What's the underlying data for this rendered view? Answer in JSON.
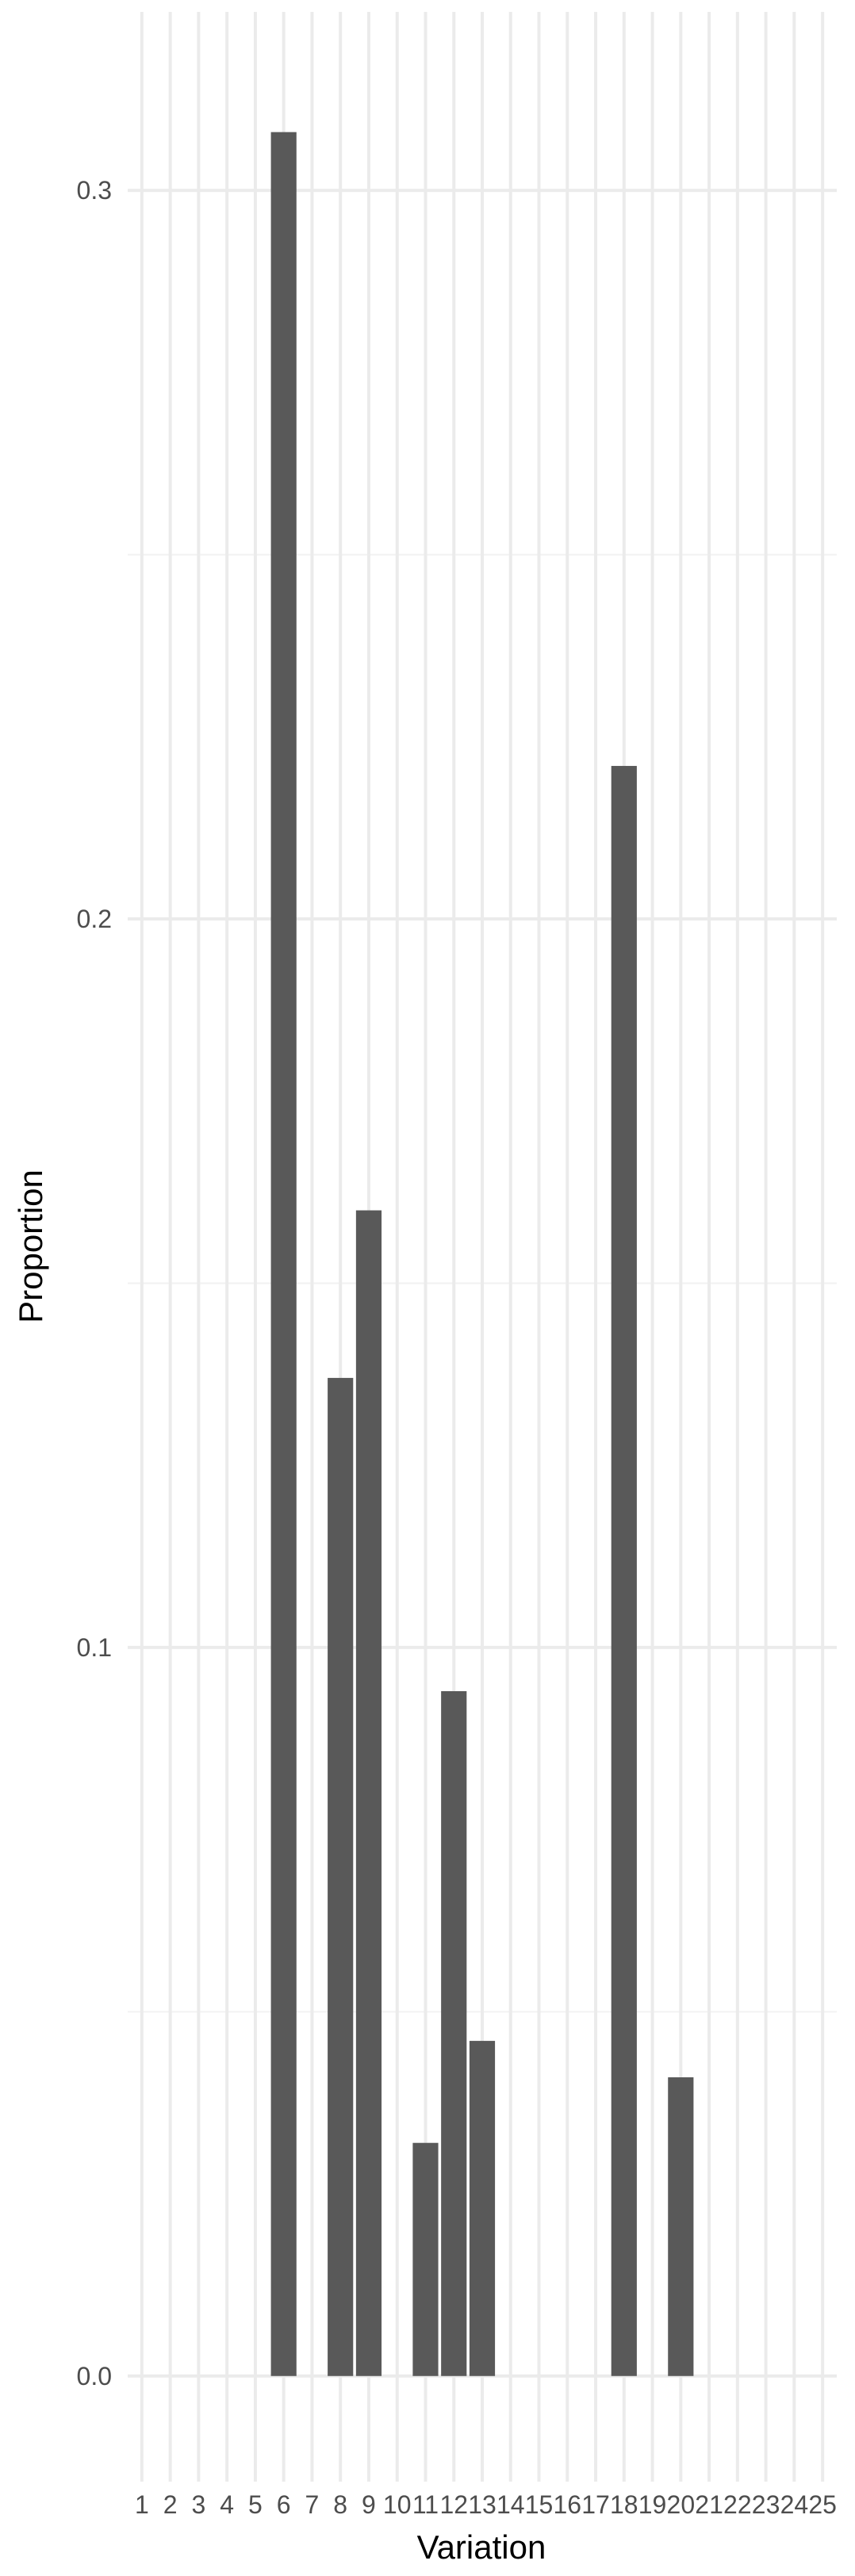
{
  "chart_data": {
    "type": "bar",
    "title": "",
    "xlabel": "Variation",
    "ylabel": "Proportion",
    "categories": [
      "1",
      "2",
      "3",
      "4",
      "5",
      "6",
      "7",
      "8",
      "9",
      "10",
      "11",
      "12",
      "13",
      "14",
      "15",
      "16",
      "17",
      "18",
      "19",
      "20",
      "21",
      "22",
      "23",
      "24",
      "25"
    ],
    "values": [
      0,
      0,
      0,
      0,
      0,
      0.308,
      0,
      0.137,
      0.16,
      0,
      0.032,
      0.094,
      0.046,
      0,
      0,
      0,
      0,
      0.221,
      0,
      0.041,
      0,
      0,
      0,
      0,
      0
    ],
    "ylim": [
      -0.0145,
      0.3245
    ],
    "yticks": [
      0.0,
      0.1,
      0.2,
      0.3
    ],
    "ytick_labels": [
      "0.0",
      "0.1",
      "0.2",
      "0.3"
    ],
    "grid": true,
    "legend": "none",
    "colors": {
      "bar": "#595959",
      "grid_major": "#ebebeb",
      "grid_minor": "#f2f2f2",
      "background": "#ffffff"
    }
  }
}
